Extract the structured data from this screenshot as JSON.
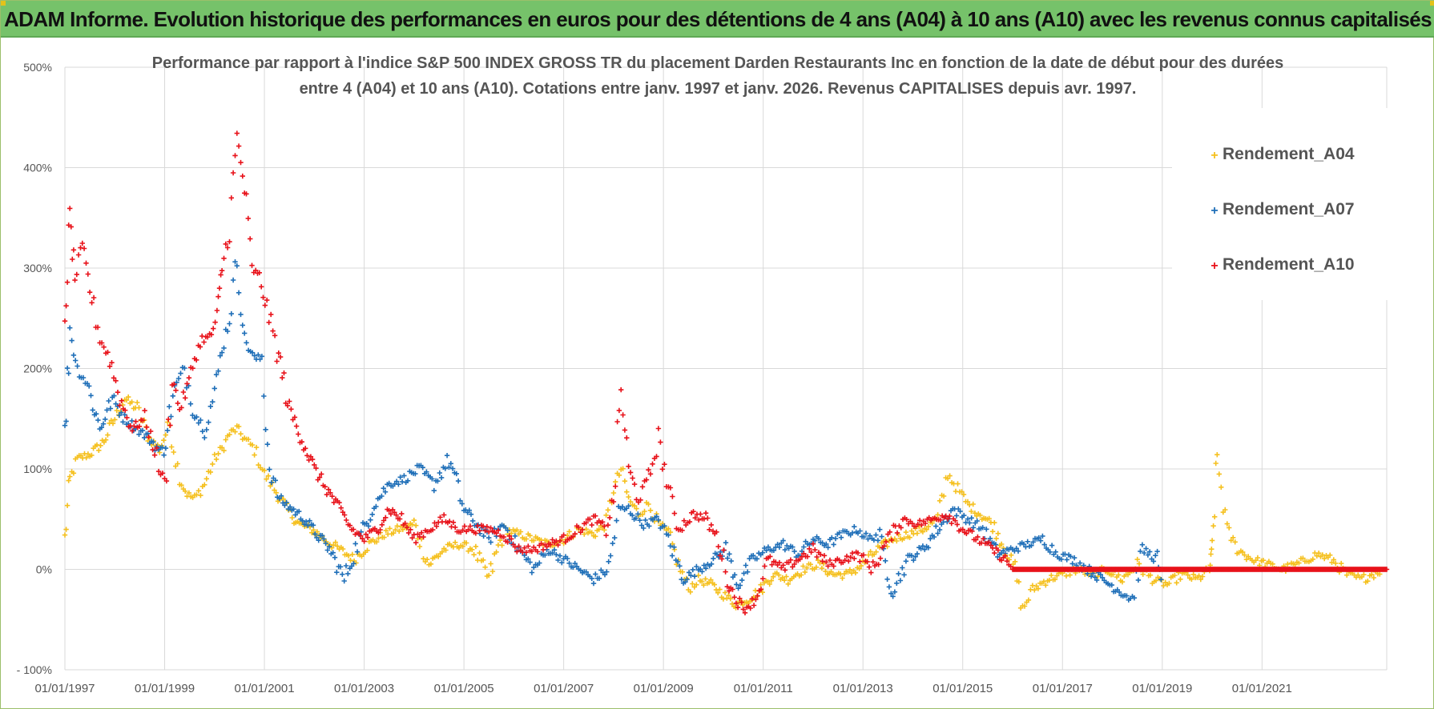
{
  "banner": {
    "title": "ADAM Informe. Evolution historique des performances en euros pour des détentions de 4 ans (A04) à 10 ans (A10) avec les revenus connus capitalisés"
  },
  "colors": {
    "banner_bg": "#76c26a",
    "A04": "#f5c01e",
    "A07": "#1f6fb8",
    "A10": "#e8121a",
    "grid": "#d9d9d9"
  },
  "chart_data": {
    "type": "scatter",
    "title_line1": "Performance par rapport à l'indice S&P 500 INDEX GROSS TR  du placement Darden Restaurants Inc en fonction de la date de début pour des durées",
    "title_line2": "entre 4 (A04) et 10 ans (A10).  Cotations entre janv. 1997 et janv. 2026. Revenus CAPITALISES depuis avr. 1997.",
    "xlim": [
      1997.0,
      2023.5
    ],
    "ylim": [
      -100,
      500
    ],
    "y_ticks": [
      -100,
      0,
      100,
      200,
      300,
      400,
      500
    ],
    "y_tick_labels": [
      "- 100%",
      "0%",
      "100%",
      "200%",
      "300%",
      "400%",
      "500%"
    ],
    "x_ticks": [
      1997,
      1999,
      2001,
      2003,
      2005,
      2007,
      2009,
      2011,
      2013,
      2015,
      2017,
      2019,
      2021
    ],
    "x_tick_labels": [
      "01/01/1997",
      "01/01/1999",
      "01/01/2001",
      "01/01/2003",
      "01/01/2005",
      "01/01/2007",
      "01/01/2009",
      "01/01/2011",
      "01/01/2013",
      "01/01/2015",
      "01/01/2017",
      "01/01/2019",
      "01/01/2021"
    ],
    "legend_position": "top-right",
    "marker": "+",
    "series": [
      {
        "name": "Rendement_A04",
        "color": "#f5c01e",
        "x": [
          1997.0,
          1997.1,
          1997.25,
          1997.5,
          1997.75,
          1998.0,
          1998.2,
          1998.45,
          1998.7,
          1998.9,
          1999.1,
          1999.3,
          1999.45,
          1999.6,
          1999.8,
          2000.0,
          2000.15,
          2000.3,
          2000.45,
          2000.6,
          2000.8,
          2001.0,
          2001.2,
          2001.45,
          2001.7,
          2001.95,
          2002.2,
          2002.5,
          2002.8,
          2003.1,
          2003.4,
          2003.7,
          2004.0,
          2004.3,
          2004.6,
          2004.9,
          2005.2,
          2005.5,
          2005.8,
          2006.1,
          2006.4,
          2006.7,
          2007.0,
          2007.3,
          2007.6,
          2007.85,
          2008.0,
          2008.15,
          2008.3,
          2008.5,
          2008.7,
          2008.9,
          2009.1,
          2009.3,
          2009.5,
          2009.7,
          2009.95,
          2010.2,
          2010.45,
          2010.7,
          2010.95,
          2011.2,
          2011.5,
          2011.8,
          2012.1,
          2012.4,
          2012.7,
          2013.0,
          2013.3,
          2013.6,
          2013.9,
          2014.2,
          2014.5,
          2014.7,
          2014.9,
          2015.1,
          2015.35,
          2015.6,
          2015.85,
          2016.05,
          2016.2,
          2016.4,
          2016.7,
          2017.0,
          2017.3,
          2017.6,
          2017.9,
          2018.2,
          2018.5,
          2018.8,
          2019.1,
          2019.4,
          2019.7,
          2019.95,
          2020.0,
          2020.1,
          2020.3,
          2020.5,
          2020.8,
          2021.1,
          2021.4,
          2021.7,
          2021.9,
          2022.1,
          2022.4,
          2022.7,
          2023.0,
          2023.4
        ],
        "y": [
          30,
          90,
          110,
          115,
          125,
          150,
          170,
          160,
          130,
          120,
          145,
          90,
          75,
          70,
          85,
          110,
          120,
          135,
          140,
          130,
          120,
          95,
          80,
          60,
          45,
          40,
          30,
          20,
          10,
          25,
          35,
          40,
          45,
          5,
          20,
          25,
          20,
          -10,
          40,
          35,
          30,
          25,
          30,
          40,
          35,
          45,
          80,
          100,
          70,
          55,
          65,
          45,
          35,
          5,
          -20,
          -10,
          -15,
          -25,
          -35,
          -30,
          -20,
          -5,
          -10,
          0,
          5,
          -5,
          -5,
          5,
          20,
          30,
          35,
          40,
          50,
          95,
          80,
          65,
          55,
          45,
          20,
          0,
          -40,
          -20,
          -10,
          -5,
          0,
          -5,
          0,
          -10,
          5,
          -10,
          -15,
          -5,
          -10,
          0,
          20,
          110,
          40,
          20,
          10,
          5,
          0,
          5,
          10,
          15,
          10,
          -5,
          -10,
          0
        ]
      },
      {
        "name": "Rendement_A07",
        "color": "#1f6fb8",
        "x": [
          1997.0,
          1997.1,
          1997.25,
          1997.45,
          1997.7,
          1997.95,
          1998.2,
          1998.45,
          1998.7,
          1998.95,
          1999.2,
          1999.4,
          1999.6,
          1999.8,
          2000.0,
          2000.15,
          2000.3,
          2000.45,
          2000.6,
          2000.8,
          2000.95,
          2001.1,
          2001.3,
          2001.55,
          2001.8,
          2002.05,
          2002.3,
          2002.6,
          2002.9,
          2003.2,
          2003.5,
          2003.8,
          2004.1,
          2004.4,
          2004.7,
          2005.0,
          2005.25,
          2005.5,
          2005.8,
          2006.1,
          2006.4,
          2006.7,
          2007.0,
          2007.3,
          2007.6,
          2007.9,
          2008.1,
          2008.3,
          2008.6,
          2008.9,
          2009.1,
          2009.4,
          2009.7,
          2010.0,
          2010.25,
          2010.5,
          2010.8,
          2011.1,
          2011.4,
          2011.7,
          2012.0,
          2012.3,
          2012.6,
          2012.9,
          2013.1,
          2013.3,
          2013.6,
          2013.9,
          2014.2,
          2014.5,
          2014.8,
          2015.1,
          2015.4,
          2015.7,
          2016.0,
          2016.3,
          2016.6,
          2016.9,
          2017.2,
          2017.5,
          2017.8,
          2018.1,
          2018.4,
          2018.6,
          2018.9,
          2019.0
        ],
        "y": [
          130,
          240,
          200,
          185,
          140,
          170,
          150,
          140,
          130,
          115,
          180,
          200,
          155,
          140,
          175,
          220,
          250,
          310,
          230,
          210,
          210,
          100,
          70,
          60,
          50,
          35,
          20,
          -10,
          30,
          65,
          85,
          90,
          100,
          85,
          110,
          60,
          45,
          30,
          45,
          20,
          0,
          20,
          10,
          0,
          -10,
          0,
          60,
          60,
          45,
          50,
          30,
          -10,
          0,
          10,
          20,
          -15,
          10,
          20,
          25,
          15,
          30,
          25,
          35,
          40,
          30,
          35,
          -20,
          10,
          20,
          40,
          60,
          50,
          40,
          15,
          20,
          25,
          30,
          15,
          10,
          0,
          -10,
          -20,
          -30,
          20,
          10,
          -25
        ]
      },
      {
        "name": "Rendement_A10",
        "color": "#e8121a",
        "x": [
          1997.0,
          1997.1,
          1997.2,
          1997.35,
          1997.5,
          1997.7,
          1997.9,
          1998.1,
          1998.35,
          1998.6,
          1998.8,
          1999.0,
          1999.15,
          1999.3,
          1999.45,
          1999.6,
          1999.75,
          1999.9,
          2000.05,
          2000.15,
          2000.3,
          2000.45,
          2000.6,
          2000.75,
          2000.9,
          2001.05,
          2001.25,
          2001.5,
          2001.75,
          2002.0,
          2002.25,
          2002.5,
          2002.75,
          2003.0,
          2003.25,
          2003.5,
          2003.75,
          2004.0,
          2004.3,
          2004.6,
          2004.9,
          2005.2,
          2005.5,
          2005.8,
          2006.1,
          2006.4,
          2006.7,
          2007.0,
          2007.3,
          2007.6,
          2007.85,
          2008.0,
          2008.15,
          2008.3,
          2008.5,
          2008.7,
          2008.9,
          2009.1,
          2009.3,
          2009.6,
          2009.85,
          2010.1,
          2010.35,
          2010.6,
          2010.85,
          2011.1,
          2011.4,
          2011.7,
          2012.0,
          2012.3,
          2012.6,
          2012.9,
          2013.2,
          2013.5,
          2013.8,
          2014.1,
          2014.4,
          2014.7,
          2015.0,
          2015.3,
          2015.6,
          2015.85,
          2016.0
        ],
        "y": [
          250,
          350,
          290,
          320,
          280,
          230,
          210,
          170,
          140,
          150,
          120,
          80,
          190,
          160,
          180,
          210,
          230,
          230,
          250,
          300,
          340,
          430,
          380,
          300,
          290,
          260,
          220,
          160,
          130,
          100,
          80,
          60,
          40,
          30,
          40,
          60,
          50,
          30,
          40,
          50,
          40,
          40,
          40,
          35,
          20,
          20,
          25,
          30,
          40,
          50,
          40,
          70,
          180,
          100,
          70,
          90,
          130,
          80,
          40,
          55,
          50,
          30,
          -20,
          -40,
          -30,
          10,
          0,
          10,
          20,
          5,
          10,
          15,
          0,
          30,
          50,
          45,
          50,
          55,
          40,
          30,
          20,
          10,
          0
        ]
      }
    ],
    "flat_line": {
      "name": "Rendement_A10",
      "x_start": 2016.0,
      "x_end": 2023.5,
      "y": 0
    }
  }
}
